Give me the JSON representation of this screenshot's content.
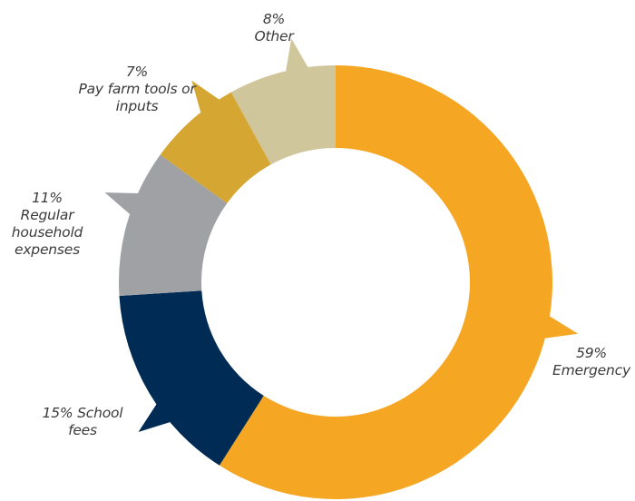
{
  "chart_data": {
    "type": "pie",
    "style": "donut",
    "title": "",
    "slices": [
      {
        "pct_label": "59%",
        "name": "Emergency",
        "value": 59,
        "color": "#f5a623"
      },
      {
        "pct_label": "15%",
        "name": "School fees",
        "value": 15,
        "color": "#002b55"
      },
      {
        "pct_label": "11%",
        "name": "Regular household expenses",
        "value": 11,
        "color": "#9fa1a4"
      },
      {
        "pct_label": "7%",
        "name": "Pay farm tools or inputs",
        "value": 7,
        "color": "#d6a633"
      },
      {
        "pct_label": "8%",
        "name": "Other",
        "value": 8,
        "color": "#d0c69c"
      }
    ],
    "labels": {
      "other": {
        "line1": "8%",
        "line2": "Other"
      },
      "farm": {
        "line1": "7%",
        "line2": "Pay farm tools or",
        "line3": "inputs"
      },
      "household": {
        "line1": "11%",
        "line2": "Regular",
        "line3": "household",
        "line4": "expenses"
      },
      "school": {
        "line1": "15% School",
        "line2": "fees"
      },
      "emergency": {
        "line1": "59%",
        "line2": "Emergency"
      }
    }
  }
}
